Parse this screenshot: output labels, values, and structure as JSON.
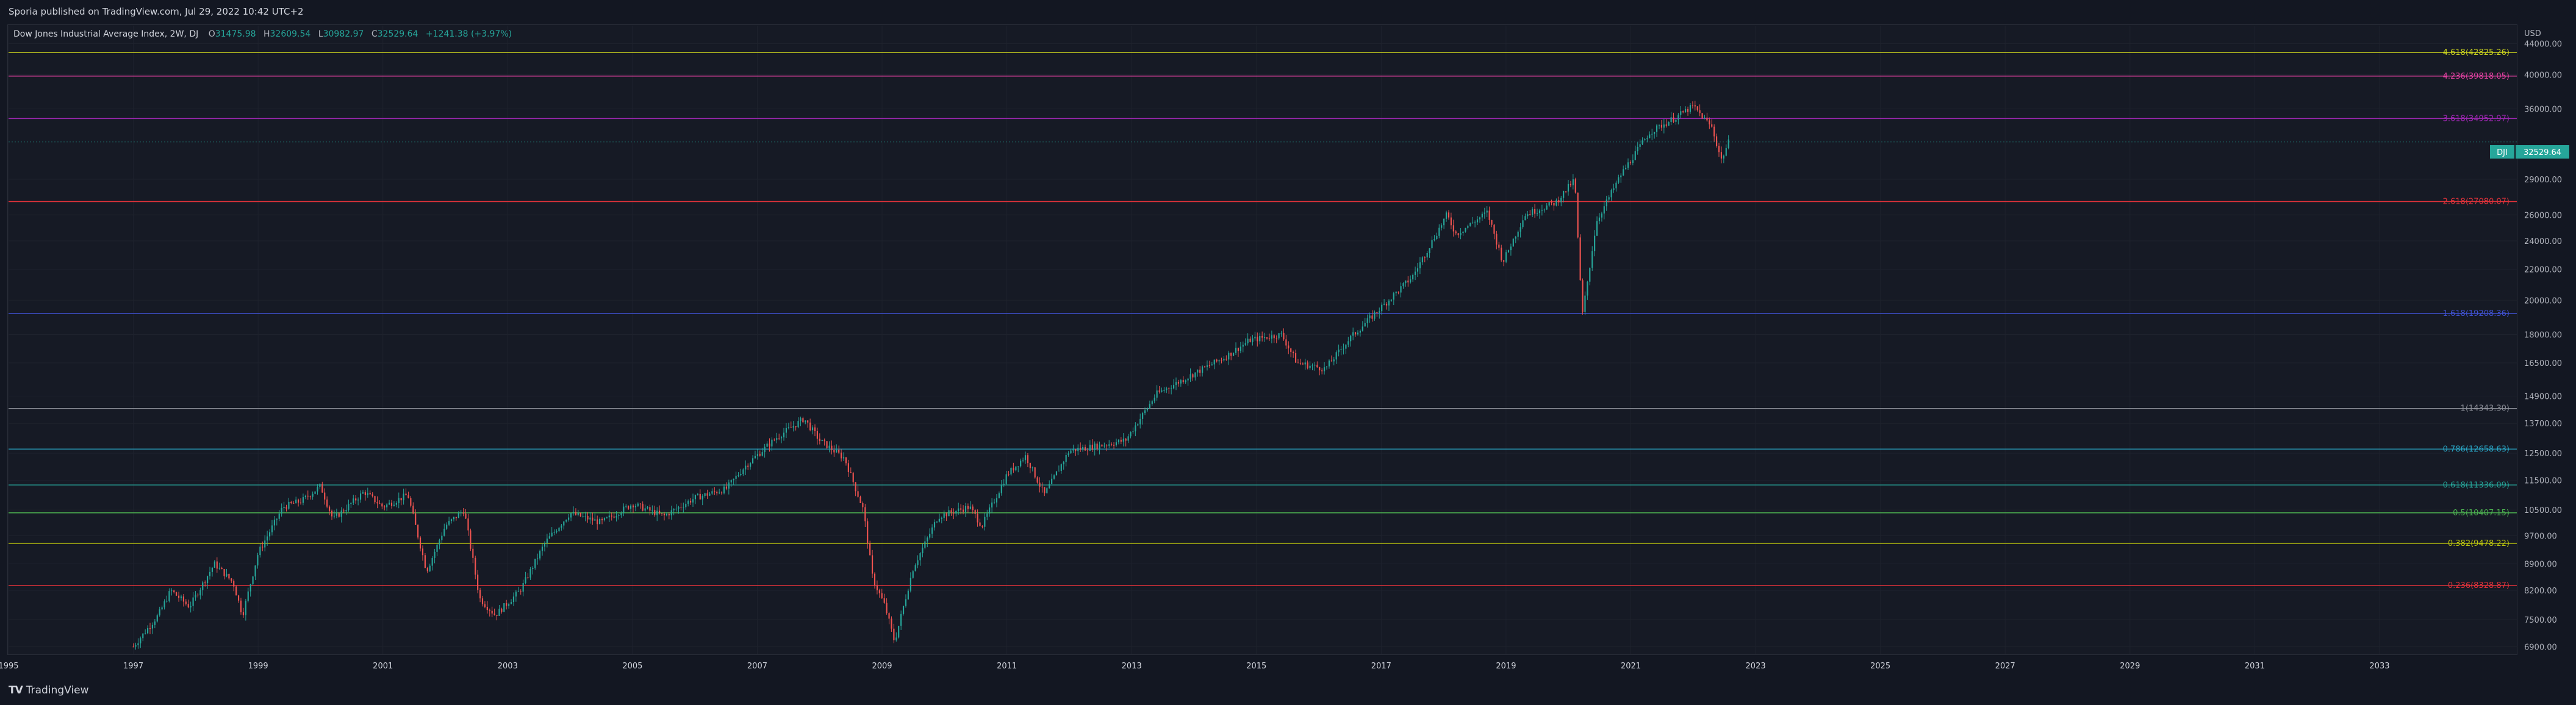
{
  "header": {
    "published_text": "Sporia published on TradingView.com, Jul 29, 2022 10:42 UTC+2"
  },
  "legend": {
    "symbol_text": "Dow Jones Industrial Average Index, 2W, DJ",
    "open_key": "O",
    "open": "31475.98",
    "high_key": "H",
    "high": "32609.54",
    "low_key": "L",
    "low": "30982.97",
    "close_key": "C",
    "close": "32529.64",
    "change": "+1241.38 (+3.97%)"
  },
  "price_badge": {
    "symbol": "DJI",
    "value": "32529.64"
  },
  "footer": {
    "logo_mark": "TV",
    "brand": "TradingView"
  },
  "colors": {
    "background": "#131722",
    "up": "#26a69a",
    "down": "#ef5350",
    "grid": "#1e222d"
  },
  "chart_data": {
    "type": "candlestick",
    "ylabel": "USD",
    "y_scale": "log",
    "ylim": [
      6750,
      46500
    ],
    "xlim": [
      1995.0,
      2035.2
    ],
    "x_ticks": [
      "1995",
      "1997",
      "1999",
      "2001",
      "2003",
      "2005",
      "2007",
      "2009",
      "2011",
      "2013",
      "2015",
      "2017",
      "2019",
      "2021",
      "2023",
      "2025",
      "2027",
      "2029",
      "2031",
      "2033"
    ],
    "y_ticks": [
      "44000.00",
      "40000.00",
      "36000.00",
      "29000.00",
      "26000.00",
      "24000.00",
      "22000.00",
      "20000.00",
      "18000.00",
      "16500.00",
      "14900.00",
      "13700.00",
      "12500.00",
      "11500.00",
      "10500.00",
      "9700.00",
      "8900.00",
      "8200.00",
      "7500.00",
      "6900.00"
    ],
    "fib_levels": [
      {
        "label": "4.618(42825.26)",
        "value": 42825.26,
        "color": "#c9d11e"
      },
      {
        "label": "4.236(39818.05)",
        "value": 39818.05,
        "color": "#e040a0"
      },
      {
        "label": "3.618(34952.97)",
        "value": 34952.97,
        "color": "#9c27b0"
      },
      {
        "label": "2.618(27080.07)",
        "value": 27080.07,
        "color": "#e0323a"
      },
      {
        "label": "1.618(19208.36)",
        "value": 19208.36,
        "color": "#3f51d0"
      },
      {
        "label": "1(14343.30)",
        "value": 14343.3,
        "color": "#8a8d96"
      },
      {
        "label": "0.786(12658.63)",
        "value": 12658.63,
        "color": "#2aa8c8"
      },
      {
        "label": "0.618(11336.09)",
        "value": 11336.09,
        "color": "#26a69a"
      },
      {
        "label": "0.5(10407.15)",
        "value": 10407.15,
        "color": "#4caf50"
      },
      {
        "label": "0.382(9478.22)",
        "value": 9478.22,
        "color": "#b8c20f"
      },
      {
        "label": "0.236(8328.87)",
        "value": 8328.87,
        "color": "#e0323a"
      }
    ],
    "price_path": [
      [
        1997.0,
        6900
      ],
      [
        1997.4,
        7600
      ],
      [
        1997.6,
        8200
      ],
      [
        1997.9,
        7800
      ],
      [
        1998.3,
        8900
      ],
      [
        1998.6,
        8400
      ],
      [
        1998.75,
        7600
      ],
      [
        1999.0,
        9200
      ],
      [
        1999.4,
        10600
      ],
      [
        1999.7,
        10800
      ],
      [
        2000.0,
        11300
      ],
      [
        2000.2,
        10200
      ],
      [
        2000.7,
        11100
      ],
      [
        2001.0,
        10600
      ],
      [
        2001.4,
        11000
      ],
      [
        2001.7,
        8700
      ],
      [
        2002.0,
        10000
      ],
      [
        2002.3,
        10500
      ],
      [
        2002.55,
        8000
      ],
      [
        2002.8,
        7600
      ],
      [
        2003.2,
        8200
      ],
      [
        2003.6,
        9500
      ],
      [
        2004.0,
        10400
      ],
      [
        2004.5,
        10100
      ],
      [
        2005.0,
        10700
      ],
      [
        2005.5,
        10300
      ],
      [
        2006.0,
        10900
      ],
      [
        2006.5,
        11200
      ],
      [
        2006.8,
        12000
      ],
      [
        2007.3,
        13100
      ],
      [
        2007.75,
        13900
      ],
      [
        2008.0,
        13000
      ],
      [
        2008.4,
        12300
      ],
      [
        2008.7,
        10500
      ],
      [
        2008.85,
        8500
      ],
      [
        2009.05,
        7800
      ],
      [
        2009.2,
        7000
      ],
      [
        2009.5,
        8800
      ],
      [
        2009.9,
        10300
      ],
      [
        2010.4,
        10600
      ],
      [
        2010.6,
        10000
      ],
      [
        2011.0,
        11700
      ],
      [
        2011.3,
        12400
      ],
      [
        2011.6,
        11000
      ],
      [
        2012.0,
        12600
      ],
      [
        2012.5,
        12800
      ],
      [
        2012.9,
        13000
      ],
      [
        2013.4,
        15000
      ],
      [
        2013.9,
        15800
      ],
      [
        2014.5,
        16800
      ],
      [
        2014.9,
        17700
      ],
      [
        2015.4,
        18000
      ],
      [
        2015.65,
        16500
      ],
      [
        2016.1,
        16200
      ],
      [
        2016.5,
        17800
      ],
      [
        2016.9,
        19200
      ],
      [
        2017.5,
        21500
      ],
      [
        2018.05,
        26000
      ],
      [
        2018.2,
        24500
      ],
      [
        2018.7,
        26200
      ],
      [
        2018.95,
        22500
      ],
      [
        2019.3,
        26000
      ],
      [
        2019.8,
        27000
      ],
      [
        2020.1,
        29000
      ],
      [
        2020.22,
        19000
      ],
      [
        2020.45,
        25500
      ],
      [
        2020.85,
        29500
      ],
      [
        2021.3,
        33500
      ],
      [
        2021.7,
        35000
      ],
      [
        2022.0,
        36300
      ],
      [
        2022.3,
        34000
      ],
      [
        2022.45,
        30800
      ],
      [
        2022.57,
        32529.64
      ]
    ]
  }
}
